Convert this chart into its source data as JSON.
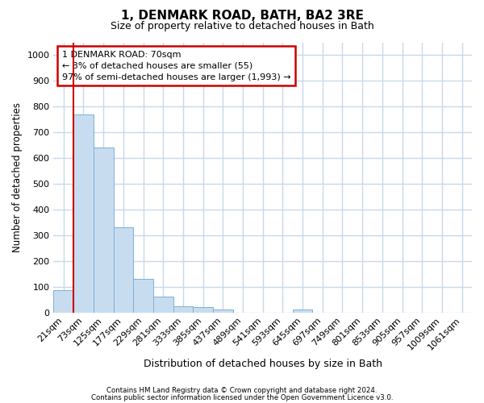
{
  "title": "1, DENMARK ROAD, BATH, BA2 3RE",
  "subtitle": "Size of property relative to detached houses in Bath",
  "xlabel": "Distribution of detached houses by size in Bath",
  "ylabel": "Number of detached properties",
  "bar_labels": [
    "21sqm",
    "73sqm",
    "125sqm",
    "177sqm",
    "229sqm",
    "281sqm",
    "333sqm",
    "385sqm",
    "437sqm",
    "489sqm",
    "541sqm",
    "593sqm",
    "645sqm",
    "697sqm",
    "749sqm",
    "801sqm",
    "853sqm",
    "905sqm",
    "957sqm",
    "1009sqm",
    "1061sqm"
  ],
  "bar_values": [
    85,
    770,
    640,
    330,
    130,
    60,
    25,
    20,
    10,
    0,
    0,
    0,
    10,
    0,
    0,
    0,
    0,
    0,
    0,
    0,
    0
  ],
  "bar_color": "#c8dcf0",
  "bar_edgecolor": "#7ab0d8",
  "ylim": [
    0,
    1050
  ],
  "yticks": [
    0,
    100,
    200,
    300,
    400,
    500,
    600,
    700,
    800,
    900,
    1000
  ],
  "property_line_index": 1,
  "property_line_color": "#cc0000",
  "annotation_line1": "1 DENMARK ROAD: 70sqm",
  "annotation_line2": "← 3% of detached houses are smaller (55)",
  "annotation_line3": "97% of semi-detached houses are larger (1,993) →",
  "annotation_box_edgecolor": "#cc0000",
  "footnote1": "Contains HM Land Registry data © Crown copyright and database right 2024.",
  "footnote2": "Contains public sector information licensed under the Open Government Licence v3.0.",
  "background_color": "#ffffff",
  "plot_bg_color": "#ffffff",
  "grid_color": "#c8d8ec"
}
